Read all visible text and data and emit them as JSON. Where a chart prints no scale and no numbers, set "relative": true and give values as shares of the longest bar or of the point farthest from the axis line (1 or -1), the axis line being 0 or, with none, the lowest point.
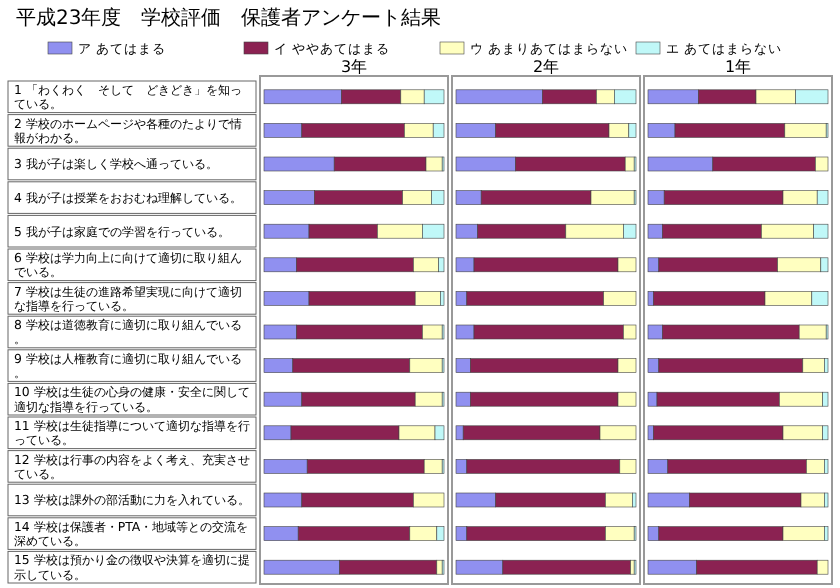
{
  "chart_data": [
    {
      "type": "bar",
      "orientation": "horizontal",
      "stacked": true,
      "relative": true,
      "legend": "top",
      "title": "3年",
      "annotations": [
        "平成23年度　学校評価　保護者アンケート結果"
      ],
      "categories": [
        "1 「わくわく　そして　どきどき」を知っている。",
        "2 学校のホームページや各種のたよりで情報がわかる。",
        "3 我が子は楽しく学校へ通っている。",
        "4 我が子は授業をおおむね理解している。",
        "5 我が子は家庭での学習を行っている。",
        "6 学校は学力向上に向けて適切に取り組んでいる。",
        "7 学校は生徒の進路希望実現に向けて適切な指導を行っている。",
        "8 学校は道徳教育に適切に取り組んでいる。",
        "9 学校は人権教育に適切に取り組んでいる。",
        "10 学校は生徒の心身の健康・安全に関して適切な指導を行っている。",
        "11 学校は生徒指導について適切な指導を行っている。",
        "12 学校は行事の内容をよく考え、充実させている。",
        "13 学校は課外の部活動に力を入れている。",
        "14 学校は保護者・PTA・地域等との交流を深めている。",
        "15 学校は預かり金の徴収や決算を適切に提示している。"
      ],
      "series": [
        {
          "name": "ア あてはまる",
          "color": "#9090f0",
          "values": [
            0.43,
            0.21,
            0.39,
            0.28,
            0.25,
            0.18,
            0.25,
            0.18,
            0.16,
            0.21,
            0.15,
            0.24,
            0.21,
            0.19,
            0.42
          ]
        },
        {
          "name": "イ ややあてはまる",
          "color": "#8b2252",
          "values": [
            0.33,
            0.57,
            0.51,
            0.49,
            0.38,
            0.65,
            0.59,
            0.7,
            0.65,
            0.63,
            0.6,
            0.65,
            0.62,
            0.62,
            0.54
          ]
        },
        {
          "name": "ウ あまりあてはまらない",
          "color": "#ffffc0",
          "values": [
            0.13,
            0.16,
            0.09,
            0.16,
            0.25,
            0.14,
            0.14,
            0.11,
            0.18,
            0.15,
            0.2,
            0.1,
            0.17,
            0.15,
            0.03
          ]
        },
        {
          "name": "エ あてはまらない",
          "color": "#c0f8f8",
          "values": [
            0.11,
            0.06,
            0.01,
            0.07,
            0.12,
            0.03,
            0.02,
            0.01,
            0.01,
            0.01,
            0.05,
            0.01,
            0,
            0.04,
            0.01
          ]
        }
      ]
    },
    {
      "type": "bar",
      "orientation": "horizontal",
      "stacked": true,
      "relative": true,
      "title": "2年",
      "categories": [
        null,
        null,
        null,
        null,
        null,
        null,
        null,
        null,
        null,
        null,
        null,
        null,
        null,
        null,
        null
      ],
      "series": [
        {
          "color": "#9090f0",
          "values": [
            0.48,
            0.22,
            0.33,
            0.14,
            0.12,
            0.1,
            0.06,
            0.1,
            0.08,
            0.08,
            0.04,
            0.06,
            0.22,
            0.06,
            0.26
          ]
        },
        {
          "color": "#8b2252",
          "values": [
            0.3,
            0.63,
            0.61,
            0.61,
            0.49,
            0.8,
            0.76,
            0.83,
            0.82,
            0.82,
            0.76,
            0.85,
            0.61,
            0.77,
            0.71
          ]
        },
        {
          "color": "#ffffc0",
          "values": [
            0.1,
            0.11,
            0.05,
            0.24,
            0.32,
            0.1,
            0.18,
            0.07,
            0.1,
            0.1,
            0.2,
            0.09,
            0.15,
            0.16,
            0.02
          ]
        },
        {
          "color": "#c0f8f8",
          "values": [
            0.12,
            0.04,
            0.01,
            0.01,
            0.07,
            0,
            0,
            0,
            0,
            0,
            0,
            0,
            0.02,
            0.01,
            0.01
          ]
        }
      ]
    },
    {
      "type": "bar",
      "orientation": "horizontal",
      "stacked": true,
      "relative": true,
      "title": "1年",
      "categories": [
        null,
        null,
        null,
        null,
        null,
        null,
        null,
        null,
        null,
        null,
        null,
        null,
        null,
        null,
        null
      ],
      "series": [
        {
          "color": "#9090f0",
          "values": [
            0.28,
            0.15,
            0.36,
            0.09,
            0.08,
            0.06,
            0.03,
            0.08,
            0.06,
            0.05,
            0.03,
            0.11,
            0.23,
            0.06,
            0.27
          ]
        },
        {
          "color": "#8b2252",
          "values": [
            0.32,
            0.61,
            0.57,
            0.66,
            0.55,
            0.66,
            0.62,
            0.76,
            0.8,
            0.68,
            0.72,
            0.77,
            0.62,
            0.69,
            0.67
          ]
        },
        {
          "color": "#ffffc0",
          "values": [
            0.22,
            0.23,
            0.07,
            0.19,
            0.29,
            0.24,
            0.26,
            0.15,
            0.12,
            0.24,
            0.22,
            0.1,
            0.13,
            0.23,
            0.06
          ]
        },
        {
          "color": "#c0f8f8",
          "values": [
            0.18,
            0.01,
            0,
            0.06,
            0.08,
            0.04,
            0.09,
            0.01,
            0.02,
            0.03,
            0.03,
            0.02,
            0.02,
            0.02,
            0
          ]
        }
      ]
    }
  ]
}
